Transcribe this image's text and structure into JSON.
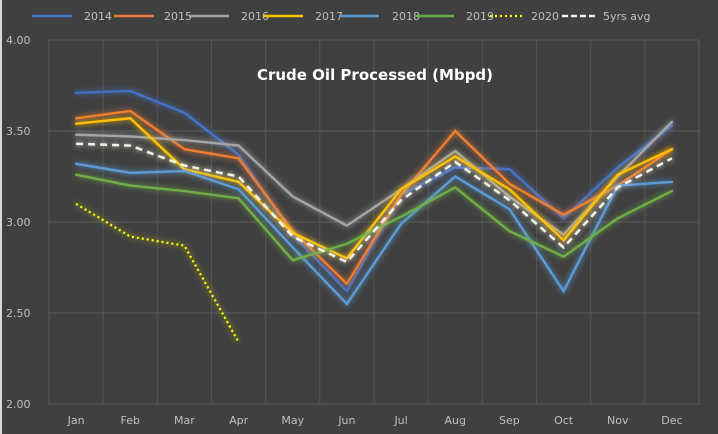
{
  "chart_data": {
    "type": "line",
    "title": "Crude Oil Processed (Mbpd)",
    "xlabel": "",
    "ylabel": "",
    "ylim": [
      2.0,
      4.0
    ],
    "yticks": [
      "2.00",
      "2.50",
      "3.00",
      "3.50",
      "4.00"
    ],
    "ytick_values": [
      2.0,
      2.5,
      3.0,
      3.5,
      4.0
    ],
    "grid": true,
    "legend_position": "top",
    "categories": [
      "Jan",
      "Feb",
      "Mar",
      "Apr",
      "May",
      "Jun",
      "Jul",
      "Aug",
      "Sep",
      "Oct",
      "Nov",
      "Dec"
    ],
    "series": [
      {
        "name": "2014",
        "color": "#4472C4",
        "style": "solid",
        "values": [
          3.71,
          3.72,
          3.6,
          3.37,
          2.93,
          2.62,
          3.15,
          3.3,
          3.29,
          3.02,
          3.3,
          3.53
        ]
      },
      {
        "name": "2015",
        "color": "#ED7D31",
        "style": "solid",
        "values": [
          3.57,
          3.61,
          3.4,
          3.35,
          2.95,
          2.66,
          3.15,
          3.5,
          3.21,
          3.04,
          3.2,
          3.4
        ]
      },
      {
        "name": "2016",
        "color": "#A5A5A5",
        "style": "solid",
        "values": [
          3.48,
          3.47,
          3.45,
          3.42,
          3.14,
          2.98,
          3.18,
          3.39,
          3.14,
          2.93,
          3.25,
          3.55
        ]
      },
      {
        "name": "2017",
        "color": "#FFC000",
        "style": "solid",
        "values": [
          3.54,
          3.57,
          3.29,
          3.22,
          2.94,
          2.8,
          3.18,
          3.36,
          3.18,
          2.9,
          3.26,
          3.4
        ]
      },
      {
        "name": "2018",
        "color": "#5B9BD5",
        "style": "solid",
        "values": [
          3.32,
          3.27,
          3.28,
          3.18,
          2.86,
          2.55,
          2.99,
          3.25,
          3.07,
          2.62,
          3.2,
          3.22
        ]
      },
      {
        "name": "2019",
        "color": "#70AD47",
        "style": "solid",
        "values": [
          3.26,
          3.2,
          3.17,
          3.13,
          2.79,
          2.88,
          3.03,
          3.19,
          2.95,
          2.81,
          3.02,
          3.17
        ]
      },
      {
        "name": "2020",
        "color": "#FFFF00",
        "style": "dotted",
        "values": [
          3.1,
          2.92,
          2.87,
          2.34,
          null,
          null,
          null,
          null,
          null,
          null,
          null,
          null
        ]
      },
      {
        "name": "5yrs avg",
        "color": "#F2F2E6",
        "style": "dashed",
        "values": [
          3.43,
          3.42,
          3.31,
          3.25,
          2.92,
          2.78,
          3.12,
          3.33,
          3.12,
          2.86,
          3.19,
          3.35
        ]
      }
    ]
  }
}
